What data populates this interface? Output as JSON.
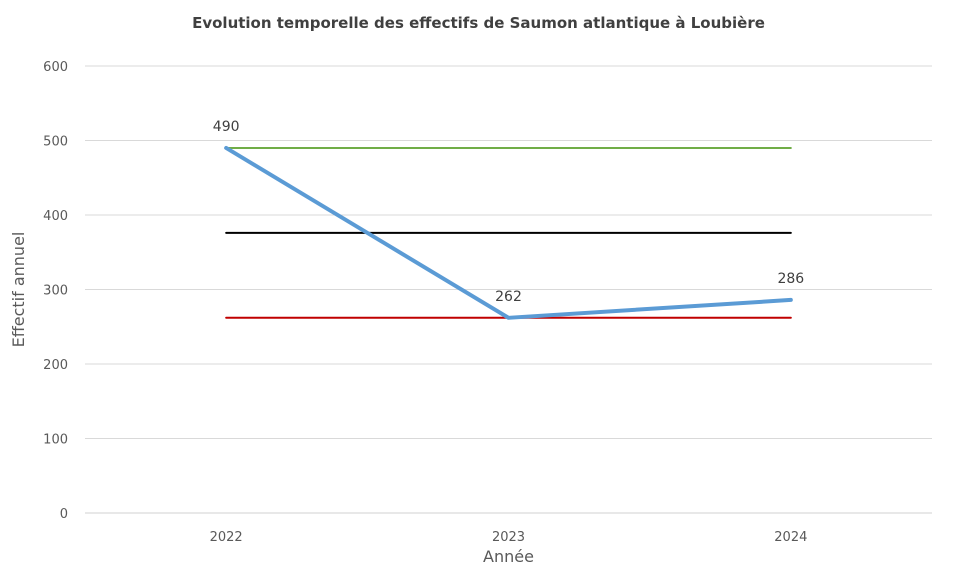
{
  "chart_data": {
    "type": "line",
    "title": "Evolution temporelle des effectifs de Saumon atlantique à Loubière",
    "xlabel": "Année",
    "ylabel": "Effectif annuel",
    "categories": [
      "2022",
      "2023",
      "2024"
    ],
    "ylim": [
      0,
      600
    ],
    "yticks": [
      0,
      100,
      200,
      300,
      400,
      500,
      600
    ],
    "grid": true,
    "series": [
      {
        "color": "#5B9BD5",
        "values": [
          490,
          262,
          286
        ],
        "data_labels": [
          "490",
          "262",
          "286"
        ]
      },
      {
        "color": "#70AD47",
        "values": [
          490,
          490,
          490
        ]
      },
      {
        "color": "#000000",
        "values": [
          376,
          376,
          376
        ]
      },
      {
        "color": "#C00000",
        "values": [
          262,
          262,
          262
        ]
      }
    ]
  }
}
